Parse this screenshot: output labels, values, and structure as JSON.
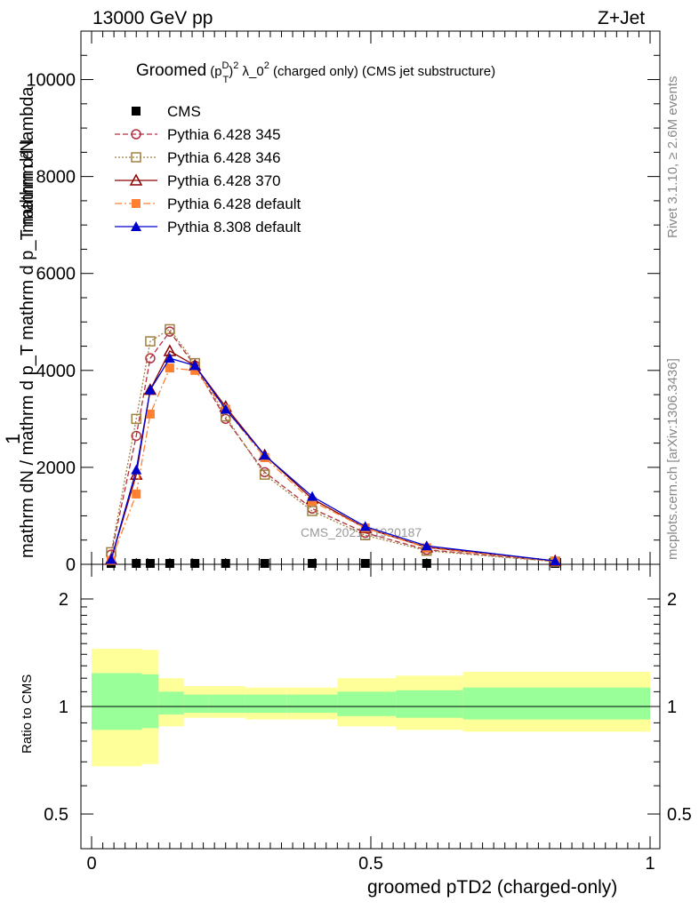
{
  "header": {
    "left": "13000 GeV pp",
    "right": "Z+Jet"
  },
  "side_labels": {
    "rivet": "Rivet 3.1.10, ≥ 2.6M events",
    "mcplots": "mcplots.cern.ch [arXiv:1306.3436]"
  },
  "chart_data": {
    "type": "line",
    "title_main": "Groomed",
    "title_sym": "(p",
    "title_sup": "D",
    "title_sub": "T",
    "title_rest": ")",
    "title_exp": "2",
    "title_tail": " λ_0",
    "title_tail_exp": "2",
    "title_end": "  (charged only) (CMS jet substructure)",
    "watermark": "CMS_2021_I1920187",
    "xlabel": "groomed pTD2 (charged-only)",
    "ylabel_top_num": "1",
    "ylabel_main": "mathrm dN / mathrm d p_T mathrm d p_T mathrm d lambda",
    "ylabel_frac": "mathrm d²N",
    "ratio_ylabel": "Ratio to CMS",
    "xlim": [
      0,
      1
    ],
    "ylim": [
      0,
      11000
    ],
    "ratio_ylim": [
      0.4,
      2.3
    ],
    "x_ticks": [
      "0",
      "0.5",
      "1"
    ],
    "y_ticks": [
      "0",
      "2000",
      "4000",
      "6000",
      "8000",
      "10000"
    ],
    "ratio_ticks": [
      "0.5",
      "1",
      "2"
    ],
    "series": [
      {
        "name": "CMS",
        "color": "#000000",
        "marker": "square-filled",
        "dash": "none",
        "x": [
          0.035,
          0.08,
          0.105,
          0.14,
          0.185,
          0.24,
          0.31,
          0.395,
          0.49,
          0.6,
          0.83
        ],
        "y": [
          0,
          0,
          0,
          0,
          0,
          0,
          0,
          0,
          0,
          0,
          0
        ]
      },
      {
        "name": "Pythia 6.428 345",
        "color": "#b03040",
        "marker": "circle-open",
        "dash": "6,3",
        "x": [
          0.035,
          0.08,
          0.105,
          0.14,
          0.185,
          0.24,
          0.31,
          0.395,
          0.49,
          0.6,
          0.83
        ],
        "y": [
          200,
          2650,
          4250,
          4800,
          4100,
          3000,
          1900,
          1150,
          650,
          300,
          60
        ]
      },
      {
        "name": "Pythia 6.428 346",
        "color": "#a08040",
        "marker": "square-open",
        "dash": "2,2",
        "x": [
          0.035,
          0.08,
          0.105,
          0.14,
          0.185,
          0.24,
          0.31,
          0.395,
          0.49,
          0.6,
          0.83
        ],
        "y": [
          250,
          3000,
          4600,
          4850,
          4150,
          3050,
          1850,
          1100,
          600,
          280,
          55
        ]
      },
      {
        "name": "Pythia 6.428 370",
        "color": "#8b0000",
        "marker": "triangle-open",
        "dash": "none",
        "x": [
          0.035,
          0.08,
          0.105,
          0.14,
          0.185,
          0.24,
          0.31,
          0.395,
          0.49,
          0.6,
          0.83
        ],
        "y": [
          100,
          1850,
          3600,
          4400,
          4100,
          3250,
          2250,
          1350,
          750,
          350,
          70
        ]
      },
      {
        "name": "Pythia 6.428 default",
        "color": "#ff8030",
        "marker": "square-filled",
        "dash": "8,3,2,3",
        "x": [
          0.035,
          0.08,
          0.105,
          0.14,
          0.185,
          0.24,
          0.31,
          0.395,
          0.49,
          0.6,
          0.83
        ],
        "y": [
          80,
          1450,
          3100,
          4050,
          4000,
          3200,
          2200,
          1300,
          750,
          340,
          65
        ]
      },
      {
        "name": "Pythia 8.308 default",
        "color": "#0000cc",
        "marker": "triangle-filled",
        "dash": "none",
        "x": [
          0.035,
          0.08,
          0.105,
          0.14,
          0.185,
          0.24,
          0.31,
          0.395,
          0.49,
          0.6,
          0.83
        ],
        "y": [
          100,
          1950,
          3600,
          4250,
          4100,
          3200,
          2250,
          1400,
          780,
          380,
          70
        ]
      }
    ],
    "ratio_bands": {
      "edges": [
        0,
        0.09,
        0.12,
        0.165,
        0.21,
        0.275,
        0.35,
        0.44,
        0.545,
        0.665,
        1.0
      ],
      "yellow_lo": [
        0.68,
        0.69,
        0.88,
        0.93,
        0.93,
        0.92,
        0.92,
        0.88,
        0.86,
        0.85
      ],
      "yellow_hi": [
        1.45,
        1.44,
        1.2,
        1.14,
        1.14,
        1.13,
        1.13,
        1.2,
        1.22,
        1.25
      ],
      "green_lo": [
        0.86,
        0.87,
        0.95,
        0.96,
        0.96,
        0.96,
        0.96,
        0.94,
        0.93,
        0.92
      ],
      "green_hi": [
        1.24,
        1.23,
        1.1,
        1.08,
        1.08,
        1.08,
        1.08,
        1.1,
        1.11,
        1.13
      ]
    }
  }
}
